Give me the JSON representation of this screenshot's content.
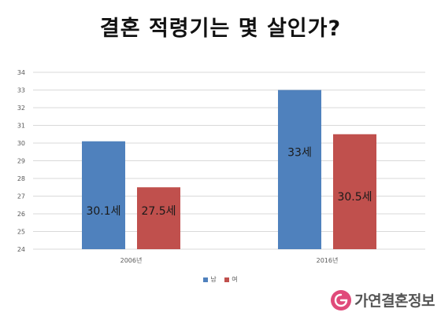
{
  "title": "결혼 적령기는 몇 살인가?",
  "brand": {
    "name": "가연결혼정보"
  },
  "colors": {
    "male": "#4f81bd",
    "female": "#c0504d",
    "grid": "#d9d9d9",
    "axis_text": "#595959"
  },
  "chart_data": {
    "type": "bar",
    "title": "결혼 적령기는 몇 살인가?",
    "categories": [
      "2006년",
      "2016년"
    ],
    "series": [
      {
        "name": "남",
        "values": [
          30.1,
          33
        ],
        "labels": [
          "30.1세",
          "33세"
        ]
      },
      {
        "name": "여",
        "values": [
          27.5,
          30.5
        ],
        "labels": [
          "27.5세",
          "30.5세"
        ]
      }
    ],
    "yticks": [
      "24",
      "25",
      "26",
      "27",
      "28",
      "29",
      "30",
      "31",
      "32",
      "33",
      "34"
    ],
    "ylim": [
      24,
      34
    ],
    "grid": true,
    "legend": "bottom"
  }
}
